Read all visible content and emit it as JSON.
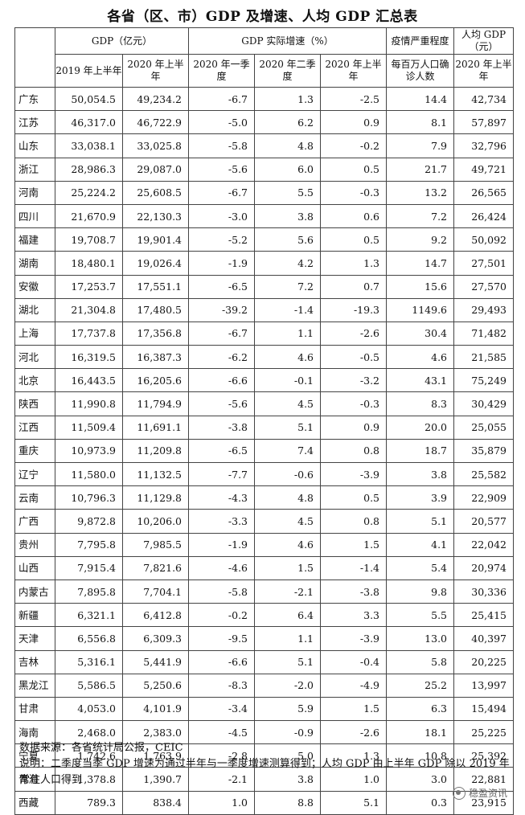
{
  "title": "各省（区、市）GDP 及增速、人均 GDP 汇总表",
  "header": {
    "gdp_group": "GDP（亿元）",
    "growth_group": "GDP 实际增速（%）",
    "covid_group": "疫情严重程度",
    "percap_group": "人均 GDP（元）",
    "cols": [
      "2019 年上半年",
      "2020 年上半年",
      "2020 年一季度",
      "2020 年二季度",
      "2020 年上半年",
      "每百万人口确诊人数",
      "2020 年上半年"
    ]
  },
  "rows": [
    {
      "prov": "广东",
      "gdp19": "50,054.5",
      "gdp20": "49,234.2",
      "q1": "-6.7",
      "q2": "1.3",
      "h1": "-2.5",
      "cases": "14.4",
      "percap": "42,734"
    },
    {
      "prov": "江苏",
      "gdp19": "46,317.0",
      "gdp20": "46,722.9",
      "q1": "-5.0",
      "q2": "6.2",
      "h1": "0.9",
      "cases": "8.1",
      "percap": "57,897"
    },
    {
      "prov": "山东",
      "gdp19": "33,038.1",
      "gdp20": "33,025.8",
      "q1": "-5.8",
      "q2": "4.8",
      "h1": "-0.2",
      "cases": "7.9",
      "percap": "32,796"
    },
    {
      "prov": "浙江",
      "gdp19": "28,986.3",
      "gdp20": "29,087.0",
      "q1": "-5.6",
      "q2": "6.0",
      "h1": "0.5",
      "cases": "21.7",
      "percap": "49,721"
    },
    {
      "prov": "河南",
      "gdp19": "25,224.2",
      "gdp20": "25,608.5",
      "q1": "-6.7",
      "q2": "5.5",
      "h1": "-0.3",
      "cases": "13.2",
      "percap": "26,565"
    },
    {
      "prov": "四川",
      "gdp19": "21,670.9",
      "gdp20": "22,130.3",
      "q1": "-3.0",
      "q2": "3.8",
      "h1": "0.6",
      "cases": "7.2",
      "percap": "26,424"
    },
    {
      "prov": "福建",
      "gdp19": "19,708.7",
      "gdp20": "19,901.4",
      "q1": "-5.2",
      "q2": "5.6",
      "h1": "0.5",
      "cases": "9.2",
      "percap": "50,092"
    },
    {
      "prov": "湖南",
      "gdp19": "18,480.1",
      "gdp20": "19,026.4",
      "q1": "-1.9",
      "q2": "4.2",
      "h1": "1.3",
      "cases": "14.7",
      "percap": "27,501"
    },
    {
      "prov": "安徽",
      "gdp19": "17,253.7",
      "gdp20": "17,551.1",
      "q1": "-6.5",
      "q2": "7.2",
      "h1": "0.7",
      "cases": "15.6",
      "percap": "27,570"
    },
    {
      "prov": "湖北",
      "gdp19": "21,304.8",
      "gdp20": "17,480.5",
      "q1": "-39.2",
      "q2": "-1.4",
      "h1": "-19.3",
      "cases": "1149.6",
      "percap": "29,493"
    },
    {
      "prov": "上海",
      "gdp19": "17,737.8",
      "gdp20": "17,356.8",
      "q1": "-6.7",
      "q2": "1.1",
      "h1": "-2.6",
      "cases": "30.4",
      "percap": "71,482"
    },
    {
      "prov": "河北",
      "gdp19": "16,319.5",
      "gdp20": "16,387.3",
      "q1": "-6.2",
      "q2": "4.6",
      "h1": "-0.5",
      "cases": "4.6",
      "percap": "21,585"
    },
    {
      "prov": "北京",
      "gdp19": "16,443.5",
      "gdp20": "16,205.6",
      "q1": "-6.6",
      "q2": "-0.1",
      "h1": "-3.2",
      "cases": "43.1",
      "percap": "75,249"
    },
    {
      "prov": "陕西",
      "gdp19": "11,990.8",
      "gdp20": "11,794.9",
      "q1": "-5.6",
      "q2": "4.5",
      "h1": "-0.3",
      "cases": "8.3",
      "percap": "30,429"
    },
    {
      "prov": "江西",
      "gdp19": "11,509.4",
      "gdp20": "11,691.1",
      "q1": "-3.8",
      "q2": "5.1",
      "h1": "0.9",
      "cases": "20.0",
      "percap": "25,055"
    },
    {
      "prov": "重庆",
      "gdp19": "10,973.9",
      "gdp20": "11,209.8",
      "q1": "-6.5",
      "q2": "7.4",
      "h1": "0.8",
      "cases": "18.7",
      "percap": "35,879"
    },
    {
      "prov": "辽宁",
      "gdp19": "11,580.0",
      "gdp20": "11,132.5",
      "q1": "-7.7",
      "q2": "-0.6",
      "h1": "-3.9",
      "cases": "3.8",
      "percap": "25,582"
    },
    {
      "prov": "云南",
      "gdp19": "10,796.3",
      "gdp20": "11,129.8",
      "q1": "-4.3",
      "q2": "4.8",
      "h1": "0.5",
      "cases": "3.9",
      "percap": "22,909"
    },
    {
      "prov": "广西",
      "gdp19": "9,872.8",
      "gdp20": "10,206.0",
      "q1": "-3.3",
      "q2": "4.5",
      "h1": "0.8",
      "cases": "5.1",
      "percap": "20,577"
    },
    {
      "prov": "贵州",
      "gdp19": "7,795.8",
      "gdp20": "7,985.5",
      "q1": "-1.9",
      "q2": "4.6",
      "h1": "1.5",
      "cases": "4.1",
      "percap": "22,042"
    },
    {
      "prov": "山西",
      "gdp19": "7,915.4",
      "gdp20": "7,821.6",
      "q1": "-4.6",
      "q2": "1.5",
      "h1": "-1.4",
      "cases": "5.4",
      "percap": "20,974"
    },
    {
      "prov": "内蒙古",
      "gdp19": "7,895.8",
      "gdp20": "7,704.1",
      "q1": "-5.8",
      "q2": "-2.1",
      "h1": "-3.8",
      "cases": "9.8",
      "percap": "30,336"
    },
    {
      "prov": "新疆",
      "gdp19": "6,321.1",
      "gdp20": "6,412.8",
      "q1": "-0.2",
      "q2": "6.4",
      "h1": "3.3",
      "cases": "5.5",
      "percap": "25,415"
    },
    {
      "prov": "天津",
      "gdp19": "6,556.8",
      "gdp20": "6,309.3",
      "q1": "-9.5",
      "q2": "1.1",
      "h1": "-3.9",
      "cases": "13.0",
      "percap": "40,397"
    },
    {
      "prov": "吉林",
      "gdp19": "5,316.1",
      "gdp20": "5,441.9",
      "q1": "-6.6",
      "q2": "5.1",
      "h1": "-0.4",
      "cases": "5.8",
      "percap": "20,225"
    },
    {
      "prov": "黑龙江",
      "gdp19": "5,586.5",
      "gdp20": "5,250.6",
      "q1": "-8.3",
      "q2": "-2.0",
      "h1": "-4.9",
      "cases": "25.2",
      "percap": "13,997"
    },
    {
      "prov": "甘肃",
      "gdp19": "4,053.0",
      "gdp20": "4,101.9",
      "q1": "-3.4",
      "q2": "5.9",
      "h1": "1.5",
      "cases": "6.3",
      "percap": "15,494"
    },
    {
      "prov": "海南",
      "gdp19": "2,468.0",
      "gdp20": "2,383.0",
      "q1": "-4.5",
      "q2": "-0.9",
      "h1": "-2.6",
      "cases": "18.1",
      "percap": "25,225"
    },
    {
      "prov": "宁夏",
      "gdp19": "1,742.6",
      "gdp20": "1,763.9",
      "q1": "-2.8",
      "q2": "5.0",
      "h1": "1.3",
      "cases": "10.8",
      "percap": "25,392"
    },
    {
      "prov": "青海",
      "gdp19": "1,378.8",
      "gdp20": "1,390.7",
      "q1": "-2.1",
      "q2": "3.8",
      "h1": "1.0",
      "cases": "3.0",
      "percap": "22,881"
    },
    {
      "prov": "西藏",
      "gdp19": "789.3",
      "gdp20": "838.4",
      "q1": "1.0",
      "q2": "8.8",
      "h1": "5.1",
      "cases": "0.3",
      "percap": "23,915"
    }
  ],
  "notes": {
    "source": "数据来源：各省统计局公报，CEIC",
    "explanation": "说明：二季度当季 GDP 增速为通过半年与一季度增速测算得到；人均 GDP 由上半年 GDP 除以 2019 年常住人口得到"
  },
  "watermark": {
    "text": "稳盈资讯",
    "icon": "wechat-icon"
  }
}
